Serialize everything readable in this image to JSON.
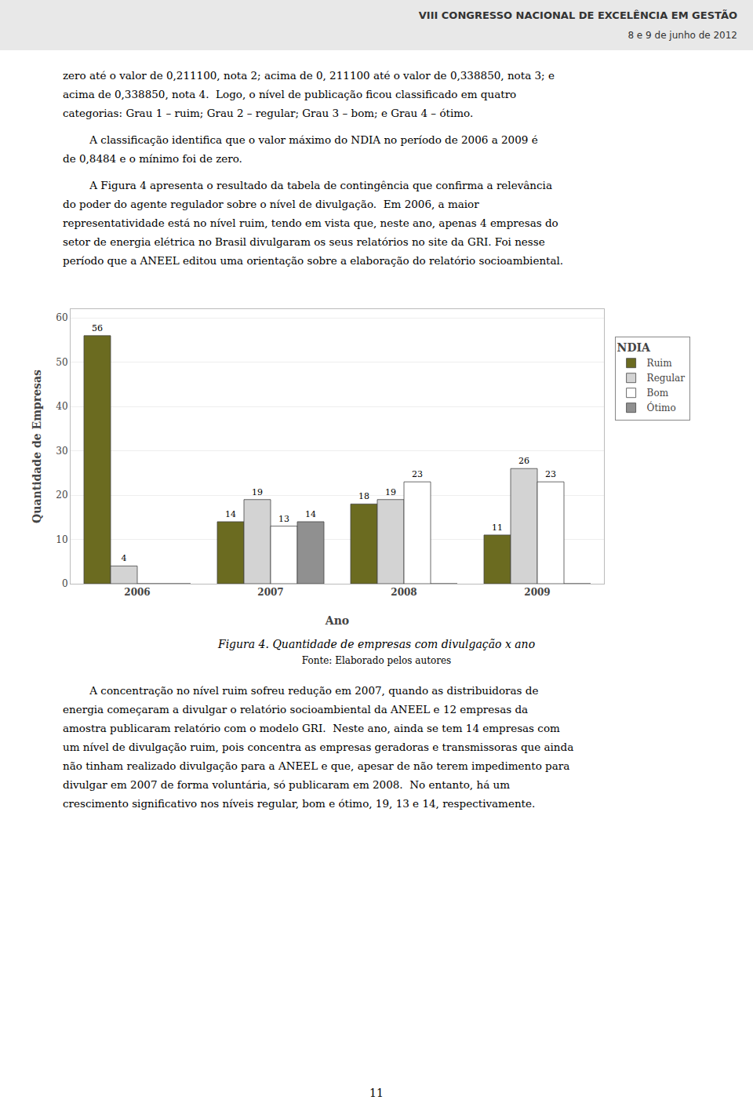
{
  "chart_data": {
    "type": "bar",
    "title": "Figura 4. Quantidade de empresas com divulgação x ano",
    "subtitle": "Fonte: Elaborado pelos autores",
    "xlabel": "Ano",
    "ylabel": "Quantidade de Empresas",
    "categories": [
      "2006",
      "2007",
      "2008",
      "2009"
    ],
    "series": [
      {
        "name": "Ruim",
        "color": "#6b6b20",
        "values": [
          56,
          14,
          18,
          11
        ]
      },
      {
        "name": "Regular",
        "color": "#d3d3d3",
        "values": [
          4,
          19,
          19,
          26
        ]
      },
      {
        "name": "Bom",
        "color": "#ffffff",
        "values": [
          0,
          13,
          23,
          23
        ]
      },
      {
        "name": "Ótimo",
        "color": "#909090",
        "values": [
          0,
          14,
          0,
          0
        ]
      }
    ],
    "ylim": [
      0,
      62
    ],
    "yticks": [
      0,
      10,
      20,
      30,
      40,
      50,
      60
    ],
    "grid": true,
    "data_labels": true,
    "legend": "right",
    "legend_title": "NDIA"
  },
  "header": [
    "VIII CONGRESSO NACIONAL DE EXCELÊNCIA EM GESTÃO",
    "8 e 9 de junho de 2012"
  ],
  "text_before": [
    [
      "zero até o valor de 0,211100, nota 2; acima de 0, 211100 até o valor de 0,338850, nota 3; e",
      "acima de 0,338850, nota 4.  Logo, o nível de publicação ficou classificado em quatro",
      "categorias: Grau 1 – ruim; Grau 2 – regular; Grau 3 – bom; e Grau 4 – ótimo."
    ],
    [
      "        A classificação identifica que o valor máximo do NDIA no período de 2006 a 2009 é",
      "de 0,8484 e o mínimo foi de zero."
    ],
    [
      "        A Figura 4 apresenta o resultado da tabela de contingência que confirma a relevância",
      "do poder do agente regulador sobre o nível de divulgação.  Em 2006, a maior",
      "representatividade está no nível ruim, tendo em vista que, neste ano, apenas 4 empresas do",
      "setor de energia elétrica no Brasil divulgaram os seus relatórios no site da GRI. Foi nesse",
      "período que a ANEEL editou uma orientação sobre a elaboração do relatório socioambiental."
    ]
  ],
  "text_after": [
    [
      "        A concentração no nível ruim sofreu redução em 2007, quando as distribuidoras de",
      "energia começaram a divulgar o relatório socioambiental da ANEEL e 12 empresas da",
      "amostra publicaram relatório com o modelo GRI.  Neste ano, ainda se tem 14 empresas com",
      "um nível de divulgação ruim, pois concentra as empresas geradoras e transmissoras que ainda",
      "não tinham realizado divulgação para a ANEEL e que, apesar de não terem impedimento para",
      "divulgar em 2007 de forma voluntária, só publicaram em 2008.  No entanto, há um",
      "crescimento significativo nos níveis regular, bom e ótimo, 19, 13 e 14, respectivamente."
    ]
  ],
  "page_number": "11"
}
